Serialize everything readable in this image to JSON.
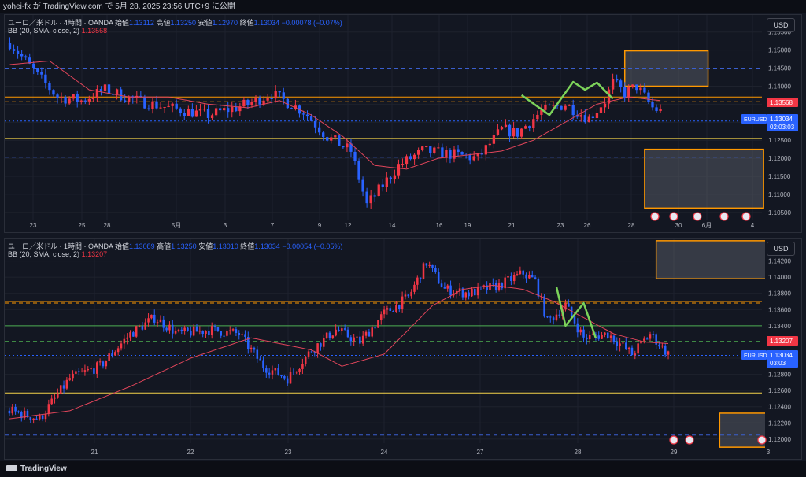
{
  "header": {
    "publish_info": "yohei-fx が TradingView.com で 5月 28, 2025 23:56 UTC+9 に公開"
  },
  "footer": {
    "brand": "TradingView"
  },
  "colors": {
    "up": "#f23645",
    "down": "#2962ff",
    "bb": "#e0455a",
    "orange": "#ff9800",
    "yellow": "#f5d44a",
    "green_level": "#4caf50",
    "green_pattern": "#7cd35a",
    "blue_dash": "#3a5fcf"
  },
  "panes": [
    {
      "id": "4h",
      "legend": {
        "symbol": "ユーロ／米ドル · 4時間 · OANDA",
        "open_label": "始値",
        "open": "1.13112",
        "high_label": "高値",
        "high": "1.13250",
        "low_label": "安値",
        "low": "1.12970",
        "close_label": "終値",
        "close": "1.13034",
        "change": "−0.00078 (−0.07%)",
        "bb_label": "BB (20, SMA, close, 2)",
        "bb_value": "1.13568"
      },
      "currency": "USD",
      "price_tag": {
        "symbol": "EURUSD",
        "price": "1.13034",
        "countdown": "02:03:03"
      },
      "level_tag": "1.13568",
      "chart_data": {
        "type": "candlestick",
        "ylim": [
          1.103,
          1.158
        ],
        "y_ticks": [
          1.155,
          1.15,
          1.145,
          1.14,
          1.135,
          1.13,
          1.125,
          1.12,
          1.115,
          1.11,
          1.105
        ],
        "y_tick_labels": [
          "1.15500",
          "1.15000",
          "1.14500",
          "1.14000",
          "1.13500",
          "1.13000",
          "1.12500",
          "1.12000",
          "1.11500",
          "1.11000",
          "1.10500"
        ],
        "x_labels": [
          "23",
          "25",
          "28",
          "5月",
          "3",
          "7",
          "9",
          "12",
          "14",
          "16",
          "19",
          "21",
          "23",
          "26",
          "28",
          "30",
          "6月",
          "4"
        ],
        "anchors": [
          [
            1.152,
            0
          ],
          [
            1.143,
            7
          ],
          [
            1.137,
            12
          ],
          [
            1.136,
            18
          ],
          [
            1.139,
            24
          ],
          [
            1.136,
            32
          ],
          [
            1.134,
            40
          ],
          [
            1.132,
            50
          ],
          [
            1.135,
            60
          ],
          [
            1.138,
            66
          ],
          [
            1.133,
            74
          ],
          [
            1.126,
            80
          ],
          [
            1.122,
            86
          ],
          [
            1.107,
            90
          ],
          [
            1.118,
            98
          ],
          [
            1.122,
            104
          ],
          [
            1.121,
            112
          ],
          [
            1.12,
            118
          ],
          [
            1.128,
            124
          ],
          [
            1.127,
            128
          ],
          [
            1.133,
            134
          ],
          [
            1.135,
            140
          ],
          [
            1.131,
            146
          ],
          [
            1.136,
            150
          ],
          [
            1.141,
            152
          ],
          [
            1.138,
            155
          ],
          [
            1.14,
            158
          ],
          [
            1.134,
            162
          ],
          [
            1.133,
            164
          ]
        ],
        "bb_anchors": [
          [
            1.146,
            0
          ],
          [
            1.147,
            10
          ],
          [
            1.139,
            20
          ],
          [
            1.137,
            30
          ],
          [
            1.137,
            40
          ],
          [
            1.135,
            50
          ],
          [
            1.134,
            60
          ],
          [
            1.136,
            68
          ],
          [
            1.132,
            76
          ],
          [
            1.126,
            84
          ],
          [
            1.118,
            92
          ],
          [
            1.117,
            100
          ],
          [
            1.12,
            108
          ],
          [
            1.121,
            116
          ],
          [
            1.122,
            124
          ],
          [
            1.125,
            132
          ],
          [
            1.13,
            140
          ],
          [
            1.135,
            148
          ],
          [
            1.137,
            156
          ],
          [
            1.136,
            164
          ]
        ],
        "levels": [
          {
            "price": 1.13568,
            "color": "#ff9800",
            "style": "dashed"
          },
          {
            "price": 1.137,
            "color": "#ff9800",
            "style": "solid"
          },
          {
            "price": 1.1255,
            "color": "#f5d44a",
            "style": "solid"
          },
          {
            "price": 1.1448,
            "color": "#3a5fcf",
            "style": "dashed"
          },
          {
            "price": 1.1203,
            "color": "#3a5fcf",
            "style": "dashed"
          },
          {
            "price": 1.13034,
            "color": "#2962ff",
            "style": "dotted"
          }
        ],
        "zones": [
          {
            "top": 1.1498,
            "bottom": 1.14,
            "x0": 155,
            "x1": 176
          },
          {
            "top": 1.1225,
            "bottom": 1.1062,
            "x0": 160,
            "x1": 190
          }
        ],
        "pattern": [
          [
            1.1375,
            129
          ],
          [
            1.132,
            136
          ],
          [
            1.1412,
            142
          ],
          [
            1.139,
            145
          ],
          [
            1.141,
            148
          ],
          [
            1.1365,
            152
          ]
        ]
      }
    },
    {
      "id": "1h",
      "legend": {
        "symbol": "ユーロ／米ドル · 1時間 · OANDA",
        "open_label": "始値",
        "open": "1.13089",
        "high_label": "高値",
        "high": "1.13250",
        "low_label": "安値",
        "low": "1.13010",
        "close_label": "終値",
        "close": "1.13034",
        "change": "−0.00054 (−0.05%)",
        "bb_label": "BB (20, SMA, close, 2)",
        "bb_value": "1.13207"
      },
      "currency": "USD",
      "price_tag": {
        "symbol": "EURUSD",
        "price": "1.13034",
        "countdown": "03:03"
      },
      "level_tag": "1.13207",
      "chart_data": {
        "type": "candlestick",
        "ylim": [
          1.1195,
          1.144
        ],
        "y_ticks": [
          1.142,
          1.14,
          1.138,
          1.136,
          1.134,
          1.132,
          1.13,
          1.128,
          1.126,
          1.124,
          1.122,
          1.12
        ],
        "y_tick_labels": [
          "1.14200",
          "1.14000",
          "1.13800",
          "1.13600",
          "1.13400",
          "1.13200",
          "1.13000",
          "1.12800",
          "1.12600",
          "1.12400",
          "1.12200",
          "1.12000"
        ],
        "x_labels": [
          "21",
          "22",
          "23",
          "24",
          "27",
          "28",
          "29",
          "3"
        ],
        "anchors": [
          [
            1.1235,
            0
          ],
          [
            1.1225,
            10
          ],
          [
            1.1275,
            20
          ],
          [
            1.129,
            30
          ],
          [
            1.133,
            40
          ],
          [
            1.135,
            48
          ],
          [
            1.133,
            56
          ],
          [
            1.1335,
            66
          ],
          [
            1.133,
            76
          ],
          [
            1.129,
            84
          ],
          [
            1.1275,
            92
          ],
          [
            1.131,
            100
          ],
          [
            1.1335,
            108
          ],
          [
            1.132,
            116
          ],
          [
            1.1355,
            124
          ],
          [
            1.1375,
            132
          ],
          [
            1.1418,
            138
          ],
          [
            1.1385,
            144
          ],
          [
            1.138,
            152
          ],
          [
            1.139,
            162
          ],
          [
            1.1405,
            170
          ],
          [
            1.1395,
            174
          ],
          [
            1.1345,
            178
          ],
          [
            1.1365,
            184
          ],
          [
            1.1325,
            190
          ],
          [
            1.133,
            198
          ],
          [
            1.1305,
            206
          ],
          [
            1.133,
            212
          ],
          [
            1.1305,
            218
          ]
        ],
        "bb_anchors": [
          [
            1.1225,
            0
          ],
          [
            1.1235,
            20
          ],
          [
            1.1265,
            40
          ],
          [
            1.13,
            60
          ],
          [
            1.1325,
            80
          ],
          [
            1.131,
            100
          ],
          [
            1.129,
            110
          ],
          [
            1.1305,
            124
          ],
          [
            1.1365,
            140
          ],
          [
            1.1385,
            150
          ],
          [
            1.139,
            160
          ],
          [
            1.1385,
            170
          ],
          [
            1.137,
            180
          ],
          [
            1.135,
            190
          ],
          [
            1.133,
            200
          ],
          [
            1.132,
            210
          ],
          [
            1.1318,
            218
          ]
        ],
        "levels": [
          {
            "price": 1.137,
            "color": "#ff9800",
            "style": "solid"
          },
          {
            "price": 1.1368,
            "color": "#ff9800",
            "style": "dashed"
          },
          {
            "price": 1.134,
            "color": "#4caf50",
            "style": "solid"
          },
          {
            "price": 1.13207,
            "color": "#4caf50",
            "style": "dashed"
          },
          {
            "price": 1.1257,
            "color": "#f5d44a",
            "style": "solid"
          },
          {
            "price": 1.1205,
            "color": "#3a5fcf",
            "style": "dashed"
          },
          {
            "price": 1.13034,
            "color": "#2962ff",
            "style": "dotted"
          }
        ],
        "zones": [
          {
            "top": 1.1445,
            "bottom": 1.1398,
            "x0": 214,
            "x1": 260
          },
          {
            "top": 1.1232,
            "bottom": 1.119,
            "x0": 235,
            "x1": 260
          }
        ],
        "pattern": [
          [
            1.1388,
            181
          ],
          [
            1.134,
            184
          ],
          [
            1.1368,
            190
          ],
          [
            1.1325,
            194
          ]
        ]
      }
    }
  ]
}
